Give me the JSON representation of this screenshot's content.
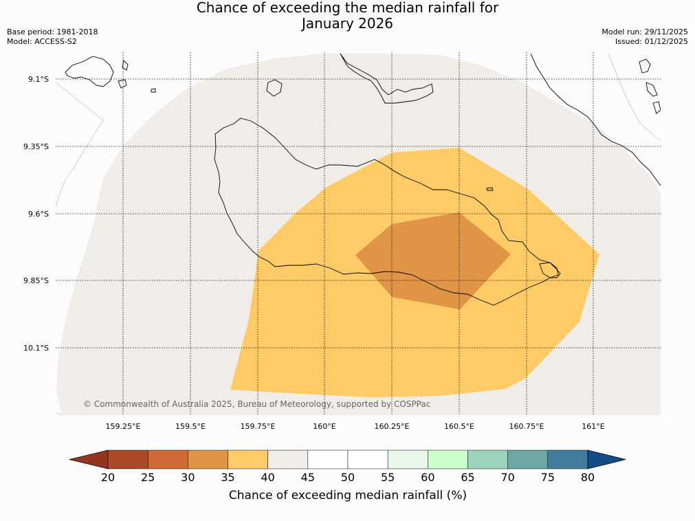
{
  "header": {
    "title_line1": "Chance of exceeding the median rainfall for",
    "title_line2": "January 2026",
    "base_period": "Base period: 1981-2018",
    "model": "Model: ACCESS-S2",
    "model_run": "Model run: 29/11/2025",
    "issued": "Issued: 01/12/2025"
  },
  "copyright": "© Commonwealth of Australia 2025, Bureau of Meteorology, supported by COSPPac",
  "colors": {
    "c20": "#ad4828",
    "c25": "#cf6835",
    "c30": "#e09446",
    "c35": "#fecb66",
    "c40": "#f0ece7",
    "c45": "#ffffff",
    "c50": "#ffffff",
    "c55": "#e9f6ea",
    "c60": "#cbfccb",
    "c65": "#9cd3bc",
    "c70": "#6ea6a6",
    "c75": "#437b9c",
    "low_ext": "#943424",
    "high_ext": "#134c86",
    "land_line": "#000000"
  },
  "chart_data": {
    "type": "heatmap",
    "title": "Chance of exceeding the median rainfall for January 2026",
    "xlabel": "",
    "ylabel": "",
    "x_ticks": [
      "159.25°E",
      "159.5°E",
      "159.75°E",
      "160°E",
      "160.25°E",
      "160.5°E",
      "160.75°E",
      "161°E"
    ],
    "y_ticks": [
      "9.1°S",
      "9.35°S",
      "9.6°S",
      "9.85°S",
      "10.1°S"
    ],
    "xlim": [
      159.0,
      161.25
    ],
    "ylim": [
      -10.333,
      -9.0
    ],
    "colorbar": {
      "label": "Chance of exceeding median rainfall (%)",
      "ticks": [
        "20",
        "25",
        "30",
        "35",
        "40",
        "45",
        "50",
        "55",
        "60",
        "65",
        "70",
        "75",
        "80"
      ],
      "bins": [
        {
          "range": "<20",
          "color": "#943424"
        },
        {
          "range": "20-25",
          "color": "#ad4828"
        },
        {
          "range": "25-30",
          "color": "#cf6835"
        },
        {
          "range": "30-35",
          "color": "#e09446"
        },
        {
          "range": "35-40",
          "color": "#fecb66"
        },
        {
          "range": "40-45",
          "color": "#f0ece7"
        },
        {
          "range": "45-50",
          "color": "#ffffff"
        },
        {
          "range": "50-55",
          "color": "#ffffff"
        },
        {
          "range": "55-60",
          "color": "#e9f6ea"
        },
        {
          "range": "60-65",
          "color": "#cbfccb"
        },
        {
          "range": "65-70",
          "color": "#9cd3bc"
        },
        {
          "range": "70-75",
          "color": "#6ea6a6"
        },
        {
          "range": "75-80",
          "color": "#437b9c"
        },
        {
          "range": ">80",
          "color": "#134c86"
        }
      ]
    },
    "regions": [
      {
        "name": "40-45% zone",
        "category": "40-45",
        "center": [
          160.0,
          -9.6
        ]
      },
      {
        "name": "35-40% zone",
        "category": "35-40",
        "center": [
          160.0,
          -9.85
        ]
      },
      {
        "name": "30-35% zone",
        "category": "30-35",
        "center": [
          160.5,
          -9.75
        ]
      }
    ]
  }
}
